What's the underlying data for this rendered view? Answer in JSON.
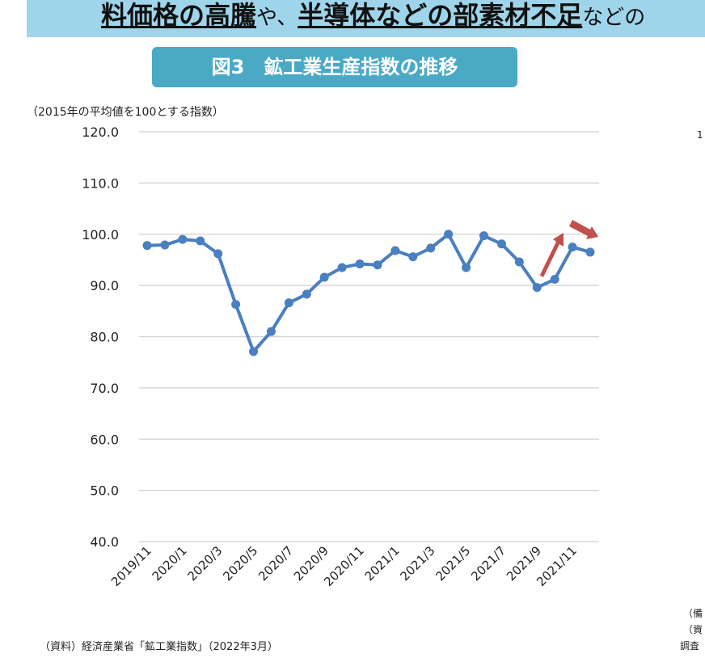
{
  "banner": {
    "text_1": "料価格の高騰",
    "text_2": "や、",
    "text_3": "半導体などの部素材不足",
    "text_4": "などの"
  },
  "figure_title": "図3　鉱工業生産指数の推移",
  "source_note": "（資料）経済産業省「鉱工業指数」（2022年3月）",
  "side_fragments": [
    "1",
    "（備",
    "（資",
    "調査"
  ],
  "chart_data": {
    "type": "line",
    "title": "図3　鉱工業生産指数の推移",
    "ylabel": "（2015年の平均値を100とする指数）",
    "xlabel": "",
    "ylim": [
      40,
      120
    ],
    "yticks": [
      "40.0",
      "50.0",
      "60.0",
      "70.0",
      "80.0",
      "90.0",
      "100.0",
      "110.0",
      "120.0"
    ],
    "grid": true,
    "x": [
      "2019/11",
      "2019/12",
      "2020/1",
      "2020/2",
      "2020/3",
      "2020/4",
      "2020/5",
      "2020/6",
      "2020/7",
      "2020/8",
      "2020/9",
      "2020/10",
      "2020/11",
      "2020/12",
      "2021/1",
      "2021/2",
      "2021/3",
      "2021/4",
      "2021/5",
      "2021/6",
      "2021/7",
      "2021/8",
      "2021/9",
      "2021/10",
      "2021/11",
      "2021/12"
    ],
    "xtick_labels": [
      "2019/11",
      "2020/1",
      "2020/3",
      "2020/5",
      "2020/7",
      "2020/9",
      "2020/11",
      "2021/1",
      "2021/3",
      "2021/5",
      "2021/7",
      "2021/9",
      "2021/11"
    ],
    "series": [
      {
        "values": [
          97.8,
          97.9,
          99.0,
          98.7,
          96.2,
          86.3,
          77.1,
          81.0,
          86.6,
          88.3,
          91.6,
          93.5,
          94.2,
          94.0,
          96.8,
          95.6,
          97.3,
          100.0,
          93.5,
          99.7,
          98.1,
          94.6,
          89.6,
          91.2,
          97.5,
          96.5
        ],
        "color": "#4a7fc1"
      }
    ],
    "annotations": [
      {
        "type": "arrow-up",
        "color": "#c0504d"
      },
      {
        "type": "arrow-down-right",
        "color": "#c0504d"
      }
    ]
  }
}
